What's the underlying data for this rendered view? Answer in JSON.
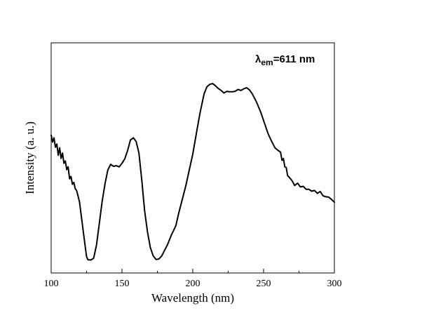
{
  "chart_data": {
    "type": "line",
    "xlabel": "Wavelength (nm)",
    "ylabel": "Intensity (a. u.)",
    "xlim": [
      100,
      300
    ],
    "ylim": [
      0,
      100
    ],
    "x_ticks": [
      100,
      150,
      200,
      250,
      300
    ],
    "y_ticks_labeled": false,
    "grid": false,
    "legend": "none",
    "annotation": {
      "symbol": "λ",
      "subscript": "em",
      "text": "=611 nm"
    },
    "series": [
      {
        "color": "#000000",
        "x": [
          100,
          101,
          102,
          103,
          104,
          105,
          106,
          107,
          108,
          109,
          110,
          111,
          112,
          113,
          114,
          115,
          116,
          117,
          118,
          120,
          122,
          124,
          125,
          126,
          128,
          130,
          132,
          134,
          136,
          138,
          140,
          142,
          144,
          146,
          148,
          150,
          152,
          154,
          156,
          158,
          160,
          162,
          164,
          166,
          168,
          170,
          172,
          174,
          176,
          178,
          180,
          182,
          185,
          188,
          190,
          195,
          200,
          203,
          205,
          207,
          208,
          210,
          212,
          214,
          216,
          218,
          220,
          222,
          224,
          226,
          228,
          230,
          232,
          234,
          236,
          238,
          240,
          242,
          245,
          248,
          250,
          253,
          255,
          258,
          260,
          262,
          263,
          264,
          265,
          266,
          267,
          268,
          270,
          272,
          274,
          276,
          278,
          280,
          282,
          284,
          286,
          288,
          290,
          292,
          294,
          296,
          298,
          300
        ],
        "y": [
          65.1,
          61.6,
          63.8,
          59.0,
          60.6,
          54.9,
          58.7,
          53.3,
          56.0,
          50.8,
          52.0,
          47.6,
          49.0,
          42.9,
          44.1,
          40.1,
          41.1,
          37.9,
          36.9,
          31.2,
          20.0,
          8.6,
          3.3,
          1.7,
          1.6,
          2.5,
          9.1,
          20.2,
          31.4,
          40.4,
          47.4,
          50.3,
          49.3,
          49.6,
          49.0,
          50.8,
          53.1,
          57.4,
          62.7,
          63.8,
          61.9,
          56.0,
          42.1,
          26.7,
          15.9,
          8.0,
          3.8,
          1.9,
          2.1,
          3.6,
          6.4,
          9.1,
          14.5,
          19.0,
          25.2,
          39.1,
          55.5,
          68.0,
          76.0,
          82.8,
          86.2,
          89.8,
          91.0,
          91.4,
          90.3,
          88.9,
          87.9,
          86.6,
          87.4,
          87.2,
          87.2,
          87.5,
          88.4,
          87.9,
          88.7,
          89.3,
          88.2,
          86.2,
          82.0,
          76.8,
          72.6,
          66.2,
          63.0,
          58.7,
          57.5,
          56.5,
          52.3,
          53.3,
          49.0,
          48.7,
          44.5,
          43.8,
          42.1,
          39.5,
          40.7,
          38.8,
          39.1,
          37.6,
          37.6,
          36.6,
          37.0,
          35.5,
          36.5,
          34.3,
          33.8,
          33.6,
          32.4,
          31.0
        ]
      }
    ]
  }
}
